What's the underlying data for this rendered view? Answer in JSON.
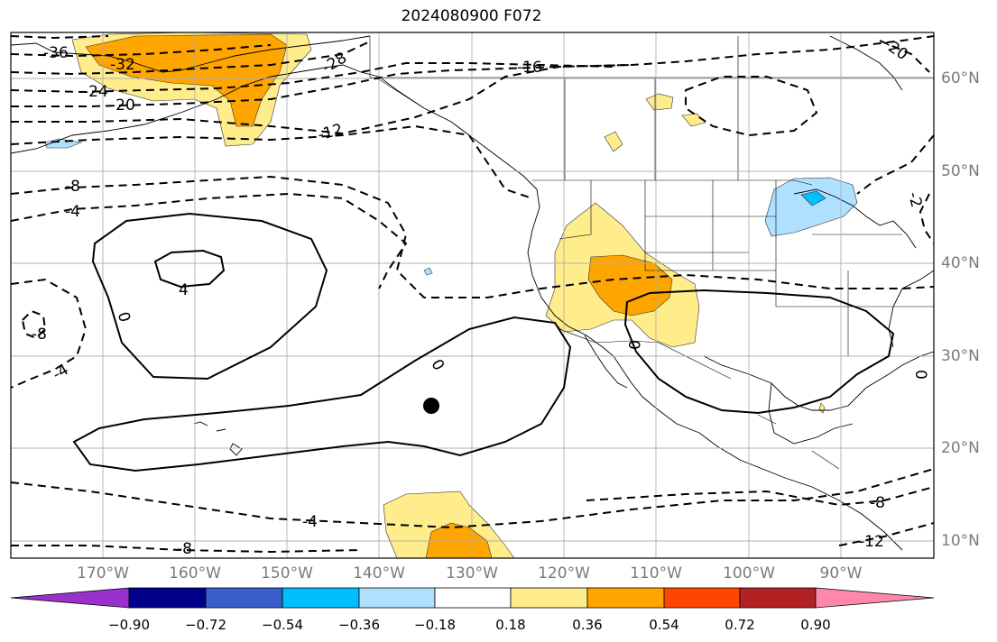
{
  "title": "2024080900 F072",
  "longitude_labels": [
    "170°W",
    "160°W",
    "150°W",
    "140°W",
    "130°W",
    "120°W",
    "110°W",
    "100°W",
    "90°W"
  ],
  "latitude_labels": [
    "60°N",
    "50°N",
    "40°N",
    "30°N",
    "20°N",
    "10°N"
  ],
  "contour_labels": [
    "-36",
    "-32",
    "-28",
    "-24",
    "-20",
    "-16",
    "-12",
    "-8",
    "-4",
    "0",
    "4",
    "-8",
    "-4",
    "0",
    "-4",
    "-8",
    "-12",
    "-2",
    "-8",
    "-20",
    "0",
    "0"
  ],
  "colorbar": {
    "tick_labels": [
      "−0.90",
      "−0.72",
      "−0.54",
      "−0.36",
      "−0.18",
      "0.18",
      "0.36",
      "0.54",
      "0.72",
      "0.90"
    ],
    "colors": [
      "#9932cc",
      "#00008b",
      "#3a5fcd",
      "#00bfff",
      "#b0e0ff",
      "#ffffff",
      "#ffec8b",
      "#ffa500",
      "#ff4500",
      "#b22222",
      "#ff88aa"
    ]
  },
  "marker": "storm-center-dot"
}
